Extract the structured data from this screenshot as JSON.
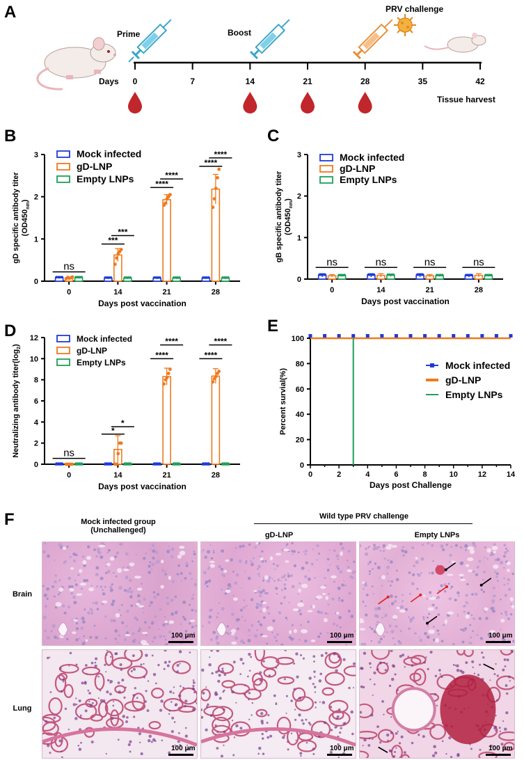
{
  "panels": {
    "A": "A",
    "B": "B",
    "C": "C",
    "D": "D",
    "E": "E",
    "F": "F"
  },
  "panelA": {
    "prime": "Prime",
    "boost": "Boost",
    "challenge": "PRV challenge",
    "days_label": "Days",
    "tissue": "Tissue harvest",
    "days": [
      "0",
      "7",
      "14",
      "21",
      "28",
      "35",
      "42"
    ],
    "blood_days": [
      "0",
      "14",
      "21",
      "28"
    ],
    "colors": {
      "syringe": "#3aa6c9",
      "syringe_challenge": "#e8903a",
      "virus": "#f0a030",
      "blood": "#c0262b",
      "mouse": "#f3ece8"
    }
  },
  "legend": {
    "mock": "Mock infected",
    "gdlnp": "gD-LNP",
    "empty": "Empty LNPs"
  },
  "colors": {
    "mock": "#1f3bd6",
    "gdlnp": "#ee7a1e",
    "empty": "#1f9f5a"
  },
  "chart_data": [
    {
      "id": "B",
      "type": "bar",
      "xlabel": "Days post vaccination",
      "ylabel": "gD specific antibody titer",
      "ylabel_sub": "(OD450",
      "ylabel_subsub": "nm",
      "ylabel_close": ")",
      "categories": [
        "0",
        "14",
        "21",
        "28"
      ],
      "ylim": [
        0,
        3
      ],
      "yticks": [
        "0",
        "1",
        "2",
        "3"
      ],
      "series": [
        {
          "name": "Mock infected",
          "values": [
            0.08,
            0.07,
            0.07,
            0.07
          ]
        },
        {
          "name": "gD-LNP",
          "values": [
            0.07,
            0.62,
            1.93,
            2.18
          ]
        },
        {
          "name": "Empty LNPs",
          "values": [
            0.08,
            0.07,
            0.07,
            0.07
          ]
        }
      ],
      "errors": [
        [
          0.02,
          0.02,
          0.02,
          0.02
        ],
        [
          0.02,
          0.15,
          0.12,
          0.35
        ],
        [
          0.02,
          0.02,
          0.02,
          0.02
        ]
      ],
      "points": [
        [
          0.06,
          0.09,
          0.07,
          0.08,
          0.1
        ],
        [
          0.4,
          0.55,
          0.65,
          0.7,
          0.75
        ],
        [
          1.8,
          1.85,
          1.95,
          2.0,
          2.05
        ],
        [
          1.75,
          1.95,
          2.2,
          2.45,
          2.65
        ]
      ],
      "annotations": [
        {
          "text": "ns",
          "cat": 0,
          "from": 0,
          "to": 2,
          "y": 0.22
        },
        {
          "text": "***",
          "cat": 1,
          "from": 0,
          "to": 1,
          "y": 0.88
        },
        {
          "text": "***",
          "cat": 1,
          "from": 1,
          "to": 2,
          "y": 1.08
        },
        {
          "text": "****",
          "cat": 2,
          "from": 0,
          "to": 1,
          "y": 2.22
        },
        {
          "text": "****",
          "cat": 2,
          "from": 1,
          "to": 2,
          "y": 2.42
        },
        {
          "text": "****",
          "cat": 3,
          "from": 0,
          "to": 1,
          "y": 2.72
        },
        {
          "text": "****",
          "cat": 3,
          "from": 1,
          "to": 2,
          "y": 2.92
        }
      ]
    },
    {
      "id": "C",
      "type": "bar",
      "xlabel": "Days post vaccination",
      "ylabel": "gB specific antibody titer",
      "ylabel_sub": "(OD450",
      "ylabel_subsub": "nm",
      "ylabel_close": ")",
      "categories": [
        "0",
        "14",
        "21",
        "28"
      ],
      "ylim": [
        0,
        3
      ],
      "yticks": [
        "0",
        "1",
        "2",
        "3"
      ],
      "series": [
        {
          "name": "Mock infected",
          "values": [
            0.09,
            0.09,
            0.09,
            0.08
          ]
        },
        {
          "name": "gD-LNP",
          "values": [
            0.08,
            0.09,
            0.08,
            0.09
          ]
        },
        {
          "name": "Empty LNPs",
          "values": [
            0.08,
            0.09,
            0.08,
            0.08
          ]
        }
      ],
      "errors": [
        [
          0.04,
          0.04,
          0.04,
          0.03
        ],
        [
          0.03,
          0.04,
          0.03,
          0.04
        ],
        [
          0.02,
          0.03,
          0.02,
          0.02
        ]
      ],
      "points": [],
      "annotations": [
        {
          "text": "ns",
          "cat": 0,
          "from": 0,
          "to": 2,
          "y": 0.28
        },
        {
          "text": "ns",
          "cat": 1,
          "from": 0,
          "to": 2,
          "y": 0.28
        },
        {
          "text": "ns",
          "cat": 2,
          "from": 0,
          "to": 2,
          "y": 0.28
        },
        {
          "text": "ns",
          "cat": 3,
          "from": 0,
          "to": 2,
          "y": 0.28
        }
      ]
    },
    {
      "id": "D",
      "type": "bar",
      "xlabel": "Days post vaccination",
      "ylabel": "Neutralizing antibody titer(log",
      "ylabel_sub": "",
      "ylabel_subsub": "2",
      "ylabel_close": ")",
      "categories": [
        "0",
        "14",
        "21",
        "28"
      ],
      "ylim": [
        0,
        12
      ],
      "yticks": [
        "0",
        "2",
        "4",
        "6",
        "8",
        "10",
        "12"
      ],
      "series": [
        {
          "name": "Mock infected",
          "values": [
            0,
            0,
            0,
            0
          ]
        },
        {
          "name": "gD-LNP",
          "values": [
            0,
            1.4,
            8.3,
            8.35
          ]
        },
        {
          "name": "Empty LNPs",
          "values": [
            0,
            0,
            0,
            0
          ]
        }
      ],
      "errors": [
        [
          0,
          0,
          0,
          0
        ],
        [
          0,
          1.3,
          0.8,
          0.7
        ],
        [
          0,
          0,
          0,
          0
        ]
      ],
      "points": [
        [
          0,
          0,
          0,
          0,
          0
        ],
        [
          0,
          0,
          1,
          2,
          2
        ],
        [
          7.6,
          8,
          8.2,
          8.6,
          9
        ],
        [
          7.8,
          8.1,
          8.3,
          8.6,
          8.8
        ]
      ],
      "annotations": [
        {
          "text": "ns",
          "cat": 0,
          "from": 0,
          "to": 2,
          "y": 0.55
        },
        {
          "text": "*",
          "cat": 1,
          "from": 0,
          "to": 1,
          "y": 2.85
        },
        {
          "text": "*",
          "cat": 1,
          "from": 1,
          "to": 2,
          "y": 3.55
        },
        {
          "text": "****",
          "cat": 2,
          "from": 0,
          "to": 1,
          "y": 10.0
        },
        {
          "text": "****",
          "cat": 2,
          "from": 1,
          "to": 2,
          "y": 11.3
        },
        {
          "text": "****",
          "cat": 3,
          "from": 0,
          "to": 1,
          "y": 10.0
        },
        {
          "text": "****",
          "cat": 3,
          "from": 1,
          "to": 2,
          "y": 11.3
        }
      ]
    },
    {
      "id": "E",
      "type": "line",
      "xlabel": "Days post Challenge",
      "ylabel": "Percent survial(%)",
      "xlim": [
        0,
        14
      ],
      "ylim": [
        0,
        100
      ],
      "xticks": [
        "0",
        "2",
        "4",
        "6",
        "8",
        "10",
        "12",
        "14"
      ],
      "yticks": [
        "0",
        "20",
        "40",
        "60",
        "80",
        "100"
      ],
      "series": [
        {
          "name": "Mock infected",
          "x": [
            0,
            1,
            2,
            3,
            4,
            5,
            6,
            7,
            8,
            9,
            10,
            11,
            12,
            13,
            14
          ],
          "y": [
            100,
            100,
            100,
            100,
            100,
            100,
            100,
            100,
            100,
            100,
            100,
            100,
            100,
            100,
            100
          ]
        },
        {
          "name": "gD-LNP",
          "x": [
            0,
            14
          ],
          "y": [
            100,
            100
          ]
        },
        {
          "name": "Empty LNPs",
          "x": [
            3,
            3
          ],
          "y": [
            100,
            0
          ]
        }
      ]
    }
  ],
  "panelF": {
    "col1": "Mock infected group",
    "col1b": "(Unchallenged)",
    "challenge_header": "Wild type PRV challenge",
    "col2": "gD-LNP",
    "col3": "Empty LNPs",
    "row1": "Brain",
    "row2": "Lung",
    "scale": "100 μm"
  }
}
